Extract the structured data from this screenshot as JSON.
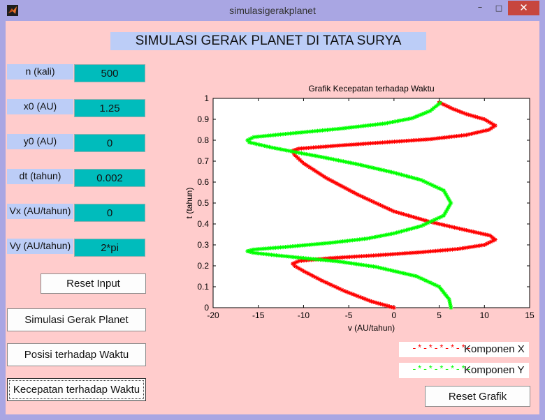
{
  "window": {
    "title": "simulasigerakplanet",
    "minimize": "–",
    "maximize": "□",
    "close": "✕"
  },
  "panel_title": "SIMULASI GERAK PLANET DI TATA SURYA",
  "params": [
    {
      "label": "n (kali)",
      "value": "500"
    },
    {
      "label": "x0 (AU)",
      "value": "1.25"
    },
    {
      "label": "y0 (AU)",
      "value": "0"
    },
    {
      "label": "dt (tahun)",
      "value": "0.002"
    },
    {
      "label": "Vx (AU/tahun)",
      "value": "0"
    },
    {
      "label": "Vy (AU/tahun)",
      "value": "2*pi"
    }
  ],
  "buttons": {
    "reset_input": "Reset Input",
    "simulate": "Simulasi Gerak Planet",
    "position_time": "Posisi terhadap Waktu",
    "velocity_time": "Kecepatan terhadap Waktu",
    "reset_chart": "Reset Grafik"
  },
  "legend": {
    "x": {
      "marker": "-*-*-*-*-*-",
      "label": "Komponen X",
      "color": "#ff0000"
    },
    "y": {
      "marker": "-*-*-*-*-*-",
      "label": "Komponen Y",
      "color": "#00ff00"
    }
  },
  "chart_data": {
    "type": "line",
    "title": "Grafik Kecepatan terhadap Waktu",
    "xlabel": "v (AU/tahun)",
    "ylabel": "t (tahun)",
    "xlim": [
      -20,
      15
    ],
    "ylim": [
      0,
      1
    ],
    "xticks": [
      "-20",
      "-15",
      "-10",
      "-5",
      "0",
      "5",
      "10",
      "15"
    ],
    "yticks": [
      "0",
      "0.1",
      "0.2",
      "0.3",
      "0.4",
      "0.5",
      "0.6",
      "0.7",
      "0.8",
      "0.9",
      "1"
    ],
    "grid": false,
    "series": [
      {
        "name": "Komponen X",
        "color": "#ff0000",
        "marker": "*",
        "points": [
          [
            0,
            0
          ],
          [
            -2.5,
            0.03
          ],
          [
            -5.5,
            0.08
          ],
          [
            -8,
            0.13
          ],
          [
            -10,
            0.175
          ],
          [
            -11,
            0.2
          ],
          [
            -11.2,
            0.21
          ],
          [
            -10.5,
            0.223
          ],
          [
            -7,
            0.237
          ],
          [
            -2,
            0.25
          ],
          [
            3,
            0.265
          ],
          [
            7,
            0.28
          ],
          [
            10,
            0.3
          ],
          [
            11.2,
            0.325
          ],
          [
            10.6,
            0.345
          ],
          [
            7.5,
            0.375
          ],
          [
            4,
            0.41
          ],
          [
            0,
            0.46
          ],
          [
            -4,
            0.54
          ],
          [
            -7.5,
            0.62
          ],
          [
            -10,
            0.69
          ],
          [
            -11,
            0.73
          ],
          [
            -11.2,
            0.75
          ],
          [
            -10.5,
            0.76
          ],
          [
            -6,
            0.775
          ],
          [
            -1,
            0.79
          ],
          [
            4,
            0.805
          ],
          [
            8,
            0.825
          ],
          [
            10.5,
            0.85
          ],
          [
            11.2,
            0.87
          ],
          [
            10,
            0.9
          ],
          [
            8,
            0.925
          ],
          [
            6.5,
            0.95
          ],
          [
            4.8,
            0.985
          ]
        ]
      },
      {
        "name": "Komponen Y",
        "color": "#00ff00",
        "marker": "*",
        "points": [
          [
            6.3,
            0
          ],
          [
            6.1,
            0.04
          ],
          [
            5,
            0.1
          ],
          [
            2.5,
            0.15
          ],
          [
            -2,
            0.195
          ],
          [
            -6,
            0.22
          ],
          [
            -10,
            0.237
          ],
          [
            -13,
            0.25
          ],
          [
            -15.5,
            0.262
          ],
          [
            -16.2,
            0.27
          ],
          [
            -15.5,
            0.278
          ],
          [
            -12,
            0.29
          ],
          [
            -7,
            0.31
          ],
          [
            -3,
            0.33
          ],
          [
            0,
            0.355
          ],
          [
            3,
            0.39
          ],
          [
            5.5,
            0.44
          ],
          [
            6.3,
            0.5
          ],
          [
            5.5,
            0.56
          ],
          [
            3,
            0.61
          ],
          [
            0,
            0.645
          ],
          [
            -4,
            0.685
          ],
          [
            -8,
            0.72
          ],
          [
            -10.5,
            0.74
          ],
          [
            -13.5,
            0.765
          ],
          [
            -16,
            0.79
          ],
          [
            -16.2,
            0.8
          ],
          [
            -15.5,
            0.815
          ],
          [
            -12,
            0.83
          ],
          [
            -6,
            0.855
          ],
          [
            -1,
            0.88
          ],
          [
            2,
            0.905
          ],
          [
            4,
            0.94
          ],
          [
            5.3,
            0.985
          ]
        ]
      }
    ]
  }
}
